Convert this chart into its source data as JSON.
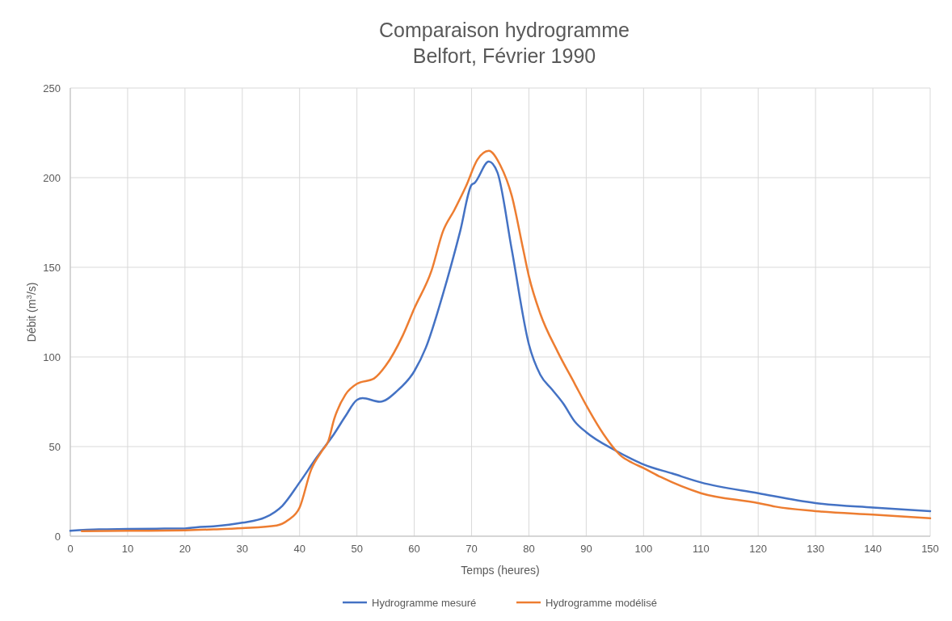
{
  "chart_data": {
    "type": "line",
    "title": "Comparaison hydrogramme\nBelfort, Février 1990",
    "xlabel": "Temps (heures)",
    "ylabel": "Débit (m$^{3}$/s)",
    "xlim": [
      0,
      150
    ],
    "xticks": [
      0,
      10,
      20,
      30,
      40,
      50,
      60,
      70,
      80,
      90,
      100,
      110,
      120,
      130,
      140,
      150
    ],
    "ylim": [
      0,
      250
    ],
    "yticks": [
      0,
      50,
      100,
      150,
      200,
      250
    ],
    "grid": true,
    "legend": "bottom",
    "line_style": "solid",
    "marker": "none",
    "series": [
      {
        "name": "Hydrogramme mesuré",
        "color": "#4472c4",
        "x": [
          0,
          5,
          10,
          15,
          20,
          22,
          25,
          30,
          34,
          37,
          40,
          43,
          46,
          48,
          50,
          51,
          54,
          57,
          60,
          62,
          65,
          68,
          70,
          70.5,
          73,
          74.5,
          77,
          80,
          82,
          84,
          86,
          88,
          90,
          95,
          98,
          100,
          105,
          110,
          120,
          130,
          140,
          150
        ],
        "values": [
          3,
          3.8,
          4,
          4.2,
          4.3,
          5,
          5.5,
          7.5,
          10.5,
          17,
          30,
          44,
          57,
          67,
          76,
          77,
          75,
          81,
          92,
          105,
          135,
          170,
          196,
          197,
          209,
          203,
          160,
          107,
          90,
          82,
          74,
          64,
          58,
          48,
          43,
          40,
          35,
          30,
          24,
          18.5,
          16,
          14
        ]
      },
      {
        "name": "Hydrogramme modélisé",
        "color": "#ed7d31",
        "x": [
          2,
          10,
          20,
          25,
          30,
          36,
          38,
          40,
          42,
          44,
          45,
          46,
          48,
          50,
          53,
          55,
          58,
          60,
          63,
          65,
          67,
          69,
          71,
          73,
          75,
          77,
          79,
          80,
          82,
          85,
          88,
          90,
          93,
          96,
          98,
          100,
          103,
          110,
          120,
          123,
          130,
          140,
          150
        ],
        "values": [
          2.8,
          3,
          3.3,
          3.8,
          4.5,
          6,
          9,
          16,
          37,
          48,
          53,
          65,
          79,
          85,
          88,
          95,
          112,
          127,
          148,
          170,
          182,
          195,
          210,
          215,
          207,
          190,
          160,
          145,
          124,
          103,
          85,
          73,
          57,
          45,
          41,
          38,
          33,
          24,
          18.5,
          16.5,
          14,
          12,
          10
        ]
      }
    ]
  }
}
